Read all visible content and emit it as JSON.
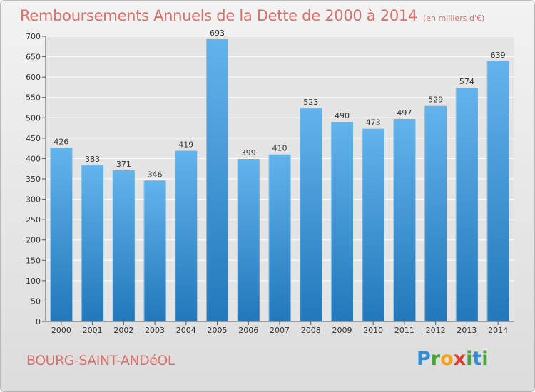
{
  "title": "Remboursements Annuels de la Dette de 2000 à 2014",
  "subtitle": "(en milliers d'€)",
  "commune": "BOURG-SAINT-ANDéOL",
  "brand": {
    "letters": [
      "P",
      "r",
      "o",
      "x",
      "i",
      "t",
      "i"
    ],
    "colors": [
      "#2f8fd8",
      "#4aa43c",
      "#f3a21a",
      "#e6392c",
      "#4aa43c",
      "#2f8fd8",
      "#4aa43c"
    ]
  },
  "colors": {
    "bar_top": "#63b3ec",
    "bar_bottom": "#2278bb",
    "grid": "#ffffff",
    "title": "#d8706b"
  },
  "chart_data": {
    "type": "bar",
    "title": "Remboursements Annuels de la Dette de 2000 à 2014",
    "subtitle": "(en milliers d'€)",
    "xlabel": "",
    "ylabel": "",
    "categories": [
      "2000",
      "2001",
      "2002",
      "2003",
      "2004",
      "2005",
      "2006",
      "2007",
      "2008",
      "2009",
      "2010",
      "2011",
      "2012",
      "2013",
      "2014"
    ],
    "values": [
      426,
      383,
      371,
      346,
      419,
      693,
      399,
      410,
      523,
      490,
      473,
      497,
      529,
      574,
      639
    ],
    "value_labels": [
      "426",
      "383",
      "371",
      "346",
      "419",
      "693",
      "399",
      "410",
      "523",
      "490",
      "473",
      "497",
      "529",
      "574",
      "639"
    ],
    "ylim": [
      0,
      700
    ],
    "yticks": [
      0,
      50,
      100,
      150,
      200,
      250,
      300,
      350,
      400,
      450,
      500,
      550,
      600,
      650,
      700
    ],
    "ytick_labels": [
      "0",
      "50",
      "100",
      "150",
      "200",
      "250",
      "300",
      "350",
      "400",
      "450",
      "500",
      "550",
      "600",
      "650",
      "700"
    ],
    "grid": true
  }
}
